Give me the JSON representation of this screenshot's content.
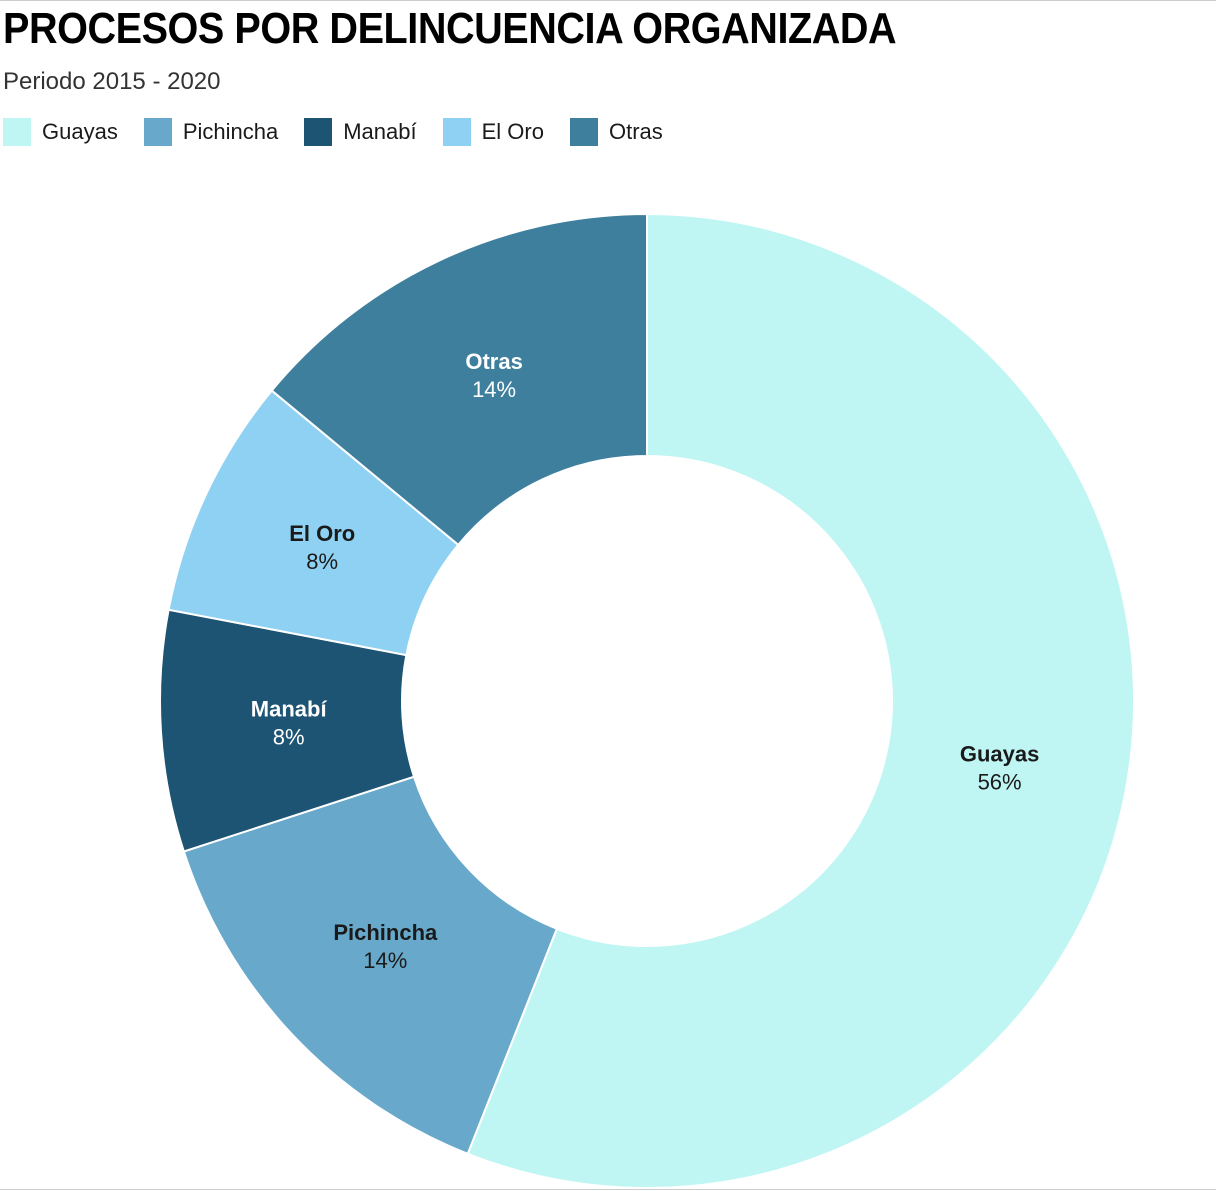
{
  "header": {
    "title": "PROCESOS POR DELINCUENCIA ORGANIZADA",
    "subtitle": "Periodo 2015 - 2020"
  },
  "chart_data": {
    "type": "pie",
    "variant": "donut",
    "title": "PROCESOS POR DELINCUENCIA ORGANIZADA",
    "subtitle": "Periodo 2015 - 2020",
    "unit": "%",
    "start_angle": "top",
    "direction": "clockwise",
    "legend_position": "top",
    "separator_color": "#ffffff",
    "categories": [
      "Guayas",
      "Pichincha",
      "Manabí",
      "El Oro",
      "Otras"
    ],
    "values": [
      56,
      14,
      8,
      8,
      14
    ],
    "slices": [
      {
        "label": "Guayas",
        "percent": 56,
        "display": "56%",
        "color": "#bff6f3",
        "label_color": "#1a1a1a"
      },
      {
        "label": "Pichincha",
        "percent": 14,
        "display": "14%",
        "color": "#68a9cb",
        "label_color": "#1a1a1a"
      },
      {
        "label": "Manabí",
        "percent": 8,
        "display": "8%",
        "color": "#1d5373",
        "label_color": "#ffffff"
      },
      {
        "label": "El Oro",
        "percent": 8,
        "display": "8%",
        "color": "#8fd1f2",
        "label_color": "#1a1a1a"
      },
      {
        "label": "Otras",
        "percent": 14,
        "display": "14%",
        "color": "#3f7f9e",
        "label_color": "#ffffff"
      }
    ]
  }
}
